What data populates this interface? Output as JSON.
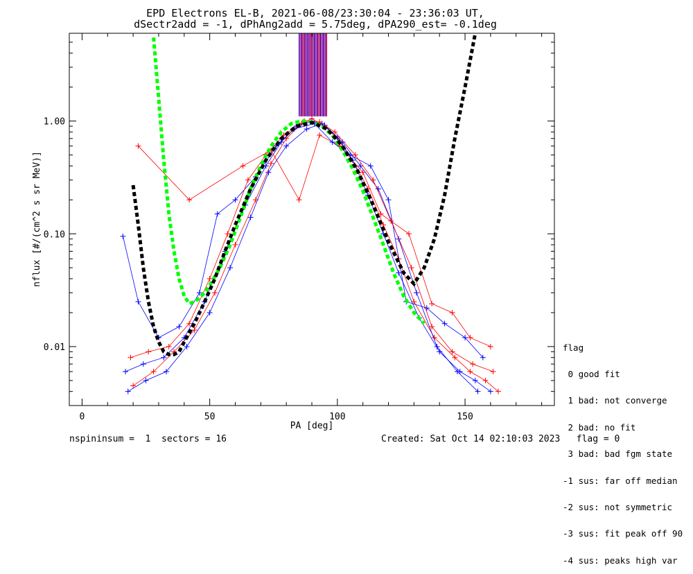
{
  "chart_data": {
    "type": "line",
    "title": "EPD Electrons EL-B, 2021-06-08/23:30:04 - 23:36:03 UT,",
    "subtitle": "dSectr2add = -1, dPhAng2add = 5.75deg, dPA290_est=  -0.1deg",
    "xlabel": "PA [deg]",
    "ylabel": "nflux [#/(cm^2 s sr MeV)]",
    "xlim": [
      -5,
      185
    ],
    "ylim": [
      0.003,
      6.0
    ],
    "yscale": "log",
    "x_ticks": [
      "0",
      "50",
      "100",
      "150"
    ],
    "y_ticks": [
      "0.01",
      "0.10",
      "1.00"
    ],
    "grid": false,
    "series": [
      {
        "color": "#ff0000",
        "marker": "+",
        "x": [
          20,
          28,
          36,
          44,
          52,
          60,
          68,
          74,
          80,
          86,
          90,
          95,
          100,
          106,
          112,
          118,
          124,
          130,
          138,
          146,
          152,
          158,
          163
        ],
        "y": [
          0.0045,
          0.006,
          0.009,
          0.014,
          0.03,
          0.08,
          0.2,
          0.42,
          0.7,
          0.95,
          1.05,
          0.9,
          0.7,
          0.45,
          0.25,
          0.12,
          0.06,
          0.025,
          0.012,
          0.008,
          0.006,
          0.005,
          0.004
        ]
      },
      {
        "color": "#0000ff",
        "marker": "+",
        "x": [
          17,
          24,
          32,
          40,
          48,
          56,
          64,
          72,
          78,
          84,
          90,
          95,
          100,
          106,
          112,
          118,
          124,
          132,
          140,
          148,
          154,
          160
        ],
        "y": [
          0.006,
          0.007,
          0.008,
          0.012,
          0.025,
          0.07,
          0.18,
          0.4,
          0.65,
          0.9,
          1.0,
          0.92,
          0.72,
          0.45,
          0.22,
          0.1,
          0.045,
          0.018,
          0.009,
          0.006,
          0.005,
          0.004
        ]
      },
      {
        "color": "#ff0000",
        "marker": "+",
        "x": [
          22,
          42,
          63,
          74,
          85,
          93,
          101,
          110,
          117,
          128,
          137,
          145,
          152,
          160
        ],
        "y": [
          0.6,
          0.2,
          0.4,
          0.55,
          0.2,
          0.75,
          0.6,
          0.35,
          0.15,
          0.1,
          0.024,
          0.02,
          0.012,
          0.01
        ]
      },
      {
        "color": "#0000ff",
        "marker": "+",
        "x": [
          16,
          22,
          30,
          38,
          46,
          53,
          60,
          68,
          76,
          83,
          91,
          98,
          105,
          113,
          120,
          127,
          135,
          142,
          150,
          157
        ],
        "y": [
          0.095,
          0.025,
          0.012,
          0.015,
          0.03,
          0.15,
          0.2,
          0.32,
          0.6,
          0.85,
          0.95,
          0.65,
          0.5,
          0.4,
          0.2,
          0.025,
          0.022,
          0.016,
          0.012,
          0.008
        ]
      },
      {
        "color": "#0000ff",
        "marker": "+",
        "x": [
          18,
          25,
          33,
          41,
          50,
          58,
          66,
          73,
          80,
          88,
          94,
          102,
          109,
          116,
          124,
          131,
          139,
          147,
          155
        ],
        "y": [
          0.004,
          0.005,
          0.006,
          0.01,
          0.02,
          0.05,
          0.14,
          0.35,
          0.6,
          0.85,
          0.95,
          0.65,
          0.4,
          0.25,
          0.09,
          0.03,
          0.01,
          0.006,
          0.004
        ]
      },
      {
        "color": "#ff0000",
        "marker": "+",
        "x": [
          19,
          26,
          34,
          42,
          50,
          57,
          65,
          72,
          79,
          87,
          93,
          99,
          107,
          114,
          121,
          129,
          137,
          145,
          153,
          161
        ],
        "y": [
          0.008,
          0.009,
          0.01,
          0.016,
          0.04,
          0.1,
          0.3,
          0.5,
          0.75,
          1.0,
          0.98,
          0.8,
          0.5,
          0.3,
          0.13,
          0.05,
          0.015,
          0.009,
          0.007,
          0.006
        ]
      }
    ],
    "fits": [
      {
        "style": "dashed",
        "color": "#00ff00",
        "x": [
          28,
          30,
          32,
          34,
          36,
          38,
          40,
          42,
          44,
          46,
          48,
          50,
          54,
          58,
          62,
          66,
          70,
          74,
          78,
          82,
          86,
          90,
          94,
          98,
          102,
          106,
          110,
          114,
          118,
          122,
          126,
          130,
          134
        ],
        "y": [
          5.5,
          1.6,
          0.45,
          0.15,
          0.07,
          0.04,
          0.028,
          0.024,
          0.025,
          0.027,
          0.03,
          0.035,
          0.05,
          0.08,
          0.14,
          0.25,
          0.4,
          0.6,
          0.8,
          0.95,
          1.0,
          0.98,
          0.9,
          0.75,
          0.55,
          0.38,
          0.24,
          0.14,
          0.08,
          0.045,
          0.028,
          0.02,
          0.016
        ]
      },
      {
        "style": "dashed",
        "color": "#000000",
        "x": [
          20,
          22,
          24,
          26,
          28,
          30,
          32,
          34,
          36,
          38,
          40,
          44,
          48,
          52,
          56,
          60,
          66,
          72,
          78,
          84,
          90,
          96,
          102,
          108,
          114,
          120,
          126,
          130,
          134,
          138,
          142,
          146,
          150,
          154
        ],
        "y": [
          0.27,
          0.12,
          0.05,
          0.025,
          0.015,
          0.011,
          0.009,
          0.0085,
          0.0085,
          0.009,
          0.011,
          0.016,
          0.025,
          0.04,
          0.07,
          0.12,
          0.25,
          0.45,
          0.7,
          0.9,
          0.97,
          0.85,
          0.6,
          0.36,
          0.18,
          0.085,
          0.045,
          0.036,
          0.05,
          0.09,
          0.22,
          0.7,
          2.0,
          6.0
        ]
      }
    ],
    "vertical_lines": {
      "x_range": [
        85,
        96
      ],
      "y_from": 1.1,
      "colors": [
        "#0000ff",
        "#ff0000",
        "#8000a0"
      ]
    },
    "legend": {
      "position": "right",
      "title": "flag",
      "entries": [
        " 0 good fit",
        " 1 bad: not converge",
        " 2 bad: no fit",
        " 3 bad: bad fgm state",
        "-1 sus: far off median",
        "-2 sus: not symmetric",
        "-3 sus: fit peak off 90",
        "-4 sus: peaks high var"
      ]
    }
  },
  "footer": {
    "left": "nspininsum =  1  sectors = 16",
    "right": "Created: Sat Oct 14 02:10:03 2023   flag = 0"
  }
}
